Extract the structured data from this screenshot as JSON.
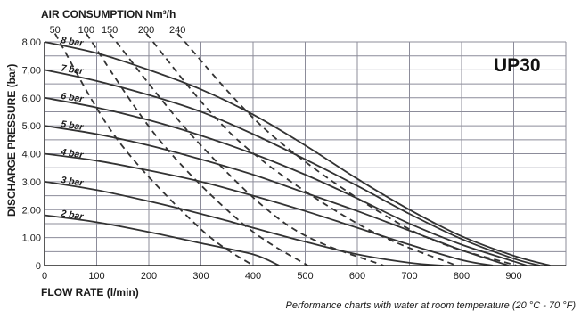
{
  "chart_data": {
    "type": "line",
    "badge": "UP30",
    "top_axis_title": "AIR CONSUMPTION Nm³/h",
    "xlabel": "FLOW RATE (l/min)",
    "ylabel": "DISCHARGE PRESSURE (bar)",
    "caption": "Performance charts with water at room temperature (20 °C - 70 °F)",
    "xlim": [
      0,
      1000
    ],
    "ylim": [
      0,
      8
    ],
    "xticks": [
      "0",
      "100",
      "200",
      "300",
      "400",
      "500",
      "600",
      "700",
      "800",
      "900"
    ],
    "yticks": [
      "0",
      "1,00",
      "2,00",
      "3,00",
      "4,00",
      "5,00",
      "6,00",
      "7,00",
      "8,00"
    ],
    "grid": true,
    "pressure_curves": [
      {
        "name": "8 bar",
        "points": [
          [
            0,
            8.0
          ],
          [
            100,
            7.6
          ],
          [
            200,
            7.0
          ],
          [
            300,
            6.3
          ],
          [
            400,
            5.4
          ],
          [
            500,
            4.3
          ],
          [
            600,
            3.1
          ],
          [
            700,
            2.0
          ],
          [
            800,
            1.05
          ],
          [
            900,
            0.35
          ],
          [
            970,
            0
          ]
        ]
      },
      {
        "name": "7 bar",
        "points": [
          [
            0,
            7.0
          ],
          [
            100,
            6.6
          ],
          [
            200,
            6.1
          ],
          [
            300,
            5.5
          ],
          [
            400,
            4.7
          ],
          [
            500,
            3.8
          ],
          [
            600,
            2.85
          ],
          [
            700,
            1.85
          ],
          [
            800,
            0.95
          ],
          [
            900,
            0.25
          ],
          [
            950,
            0
          ]
        ]
      },
      {
        "name": "6 bar",
        "points": [
          [
            0,
            6.0
          ],
          [
            100,
            5.65
          ],
          [
            200,
            5.2
          ],
          [
            300,
            4.65
          ],
          [
            400,
            4.0
          ],
          [
            500,
            3.25
          ],
          [
            600,
            2.4
          ],
          [
            700,
            1.5
          ],
          [
            800,
            0.75
          ],
          [
            900,
            0.15
          ],
          [
            925,
            0
          ]
        ]
      },
      {
        "name": "5 bar",
        "points": [
          [
            0,
            5.0
          ],
          [
            100,
            4.7
          ],
          [
            200,
            4.3
          ],
          [
            300,
            3.8
          ],
          [
            400,
            3.25
          ],
          [
            500,
            2.6
          ],
          [
            600,
            1.95
          ],
          [
            700,
            1.25
          ],
          [
            800,
            0.55
          ],
          [
            890,
            0
          ]
        ]
      },
      {
        "name": "4 bar",
        "points": [
          [
            0,
            4.0
          ],
          [
            100,
            3.75
          ],
          [
            200,
            3.4
          ],
          [
            300,
            3.0
          ],
          [
            400,
            2.5
          ],
          [
            500,
            1.95
          ],
          [
            600,
            1.35
          ],
          [
            700,
            0.75
          ],
          [
            800,
            0.2
          ],
          [
            860,
            0
          ]
        ]
      },
      {
        "name": "3 bar",
        "points": [
          [
            0,
            3.0
          ],
          [
            100,
            2.7
          ],
          [
            200,
            2.3
          ],
          [
            300,
            1.85
          ],
          [
            400,
            1.35
          ],
          [
            500,
            0.85
          ],
          [
            600,
            0.4
          ],
          [
            700,
            0.1
          ],
          [
            765,
            0
          ]
        ]
      },
      {
        "name": "2 bar",
        "points": [
          [
            0,
            1.8
          ],
          [
            100,
            1.55
          ],
          [
            200,
            1.2
          ],
          [
            300,
            0.8
          ],
          [
            400,
            0.4
          ],
          [
            450,
            0
          ]
        ]
      }
    ],
    "air_consumption_curves": [
      {
        "name": "50",
        "points": [
          [
            20,
            8.3
          ],
          [
            140,
            4.5
          ],
          [
            300,
            1.3
          ],
          [
            400,
            0
          ]
        ]
      },
      {
        "name": "100",
        "points": [
          [
            80,
            8.3
          ],
          [
            220,
            4.5
          ],
          [
            380,
            1.5
          ],
          [
            505,
            0
          ]
        ]
      },
      {
        "name": "150",
        "points": [
          [
            125,
            8.3
          ],
          [
            290,
            4.5
          ],
          [
            470,
            1.4
          ],
          [
            650,
            0
          ]
        ]
      },
      {
        "name": "200",
        "points": [
          [
            195,
            8.3
          ],
          [
            370,
            4.5
          ],
          [
            600,
            1.5
          ],
          [
            790,
            0
          ]
        ]
      },
      {
        "name": "240",
        "points": [
          [
            255,
            8.3
          ],
          [
            440,
            4.6
          ],
          [
            700,
            1.3
          ],
          [
            905,
            0
          ]
        ]
      }
    ]
  },
  "colors": {
    "curve": "#333333",
    "grid": "#8c8c9a",
    "background": "#ffffff"
  }
}
